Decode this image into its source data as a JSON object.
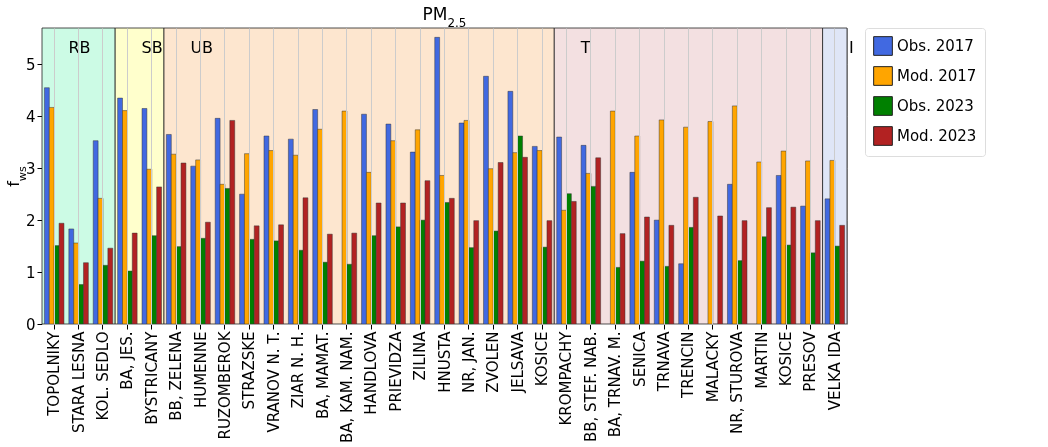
{
  "chart_data": {
    "type": "bar",
    "title": "PM$_{2.5}$",
    "ylabel": "f$_{ws}$",
    "categories": [
      "TOPOLNIKY",
      "STARA LESNA",
      "KOL. SEDLO",
      "BA, JES.",
      "BYSTRICANY",
      "BB, ZELENA",
      "HUMENNE",
      "RUZOMBEROK",
      "STRAZSKE",
      "VRANOV N. T.",
      "ZIAR N. H.",
      "BA, MAMAT.",
      "BA, KAM. NAM.",
      "HANDLOVA",
      "PRIEVIDZA",
      "ZILINA",
      "HNUSTA",
      "NR, JAN.",
      "ZVOLEN",
      "JELSAVA",
      "KOSICE",
      "KROMPACHY",
      "BB, STEF. NAB.",
      "BA, TRNAV. M.",
      "SENICA",
      "TRNAVA",
      "TRENCIN",
      "MALACKY",
      "NR, STUROVA",
      "MARTIN",
      "KOSICE",
      "PRESOV",
      "VELKA IDA"
    ],
    "series": [
      {
        "name": "Obs. 2017",
        "color": "#4169e1",
        "values": [
          4.55,
          1.83,
          3.53,
          4.35,
          4.15,
          3.65,
          3.04,
          3.96,
          2.5,
          3.62,
          3.56,
          4.13,
          null,
          4.04,
          3.85,
          3.31,
          5.52,
          3.87,
          4.77,
          4.48,
          3.42,
          3.6,
          3.44,
          null,
          2.92,
          2.0,
          1.16,
          null,
          2.69,
          null,
          2.86,
          2.27,
          2.41
        ]
      },
      {
        "name": "Mod. 2017",
        "color": "#ffa500",
        "values": [
          4.17,
          1.56,
          2.42,
          4.11,
          2.98,
          3.27,
          3.16,
          2.69,
          3.28,
          3.34,
          3.25,
          3.75,
          4.1,
          2.92,
          3.53,
          3.74,
          2.86,
          3.92,
          2.99,
          3.3,
          3.34,
          2.19,
          2.9,
          4.1,
          3.62,
          3.93,
          3.79,
          3.9,
          4.2,
          3.12,
          3.33,
          3.14,
          3.15
        ]
      },
      {
        "name": "Obs. 2023",
        "color": "#008000",
        "values": [
          1.51,
          0.76,
          1.13,
          1.02,
          1.7,
          1.49,
          1.65,
          2.61,
          1.63,
          1.6,
          1.42,
          1.19,
          1.15,
          1.7,
          1.87,
          2.0,
          2.34,
          1.47,
          1.79,
          3.62,
          1.48,
          2.51,
          2.65,
          1.09,
          1.21,
          1.11,
          1.86,
          null,
          1.22,
          1.68,
          1.52,
          1.37,
          1.5
        ]
      },
      {
        "name": "Mod. 2023",
        "color": "#b22222",
        "values": [
          1.94,
          1.18,
          1.46,
          1.75,
          2.64,
          3.1,
          1.96,
          3.92,
          1.89,
          1.91,
          2.43,
          1.73,
          1.75,
          2.33,
          2.33,
          2.76,
          2.42,
          1.99,
          3.11,
          3.21,
          1.99,
          2.36,
          3.2,
          1.74,
          2.06,
          1.9,
          2.44,
          2.08,
          1.99,
          2.24,
          2.25,
          1.99,
          1.9
        ]
      }
    ],
    "ylim": [
      0,
      5.7
    ],
    "yticks": [
      0,
      1,
      2,
      3,
      4,
      5
    ],
    "grid": true,
    "legend": "top right",
    "bands": [
      {
        "axis": "x",
        "from": "TOPOLNIKY",
        "to": "KOL. SEDLO",
        "label": "RB",
        "color": "#ccfbe5"
      },
      {
        "axis": "x",
        "from": "BA, JES.",
        "to": "BYSTRICANY",
        "label": "SB",
        "color": "#ffffcc"
      },
      {
        "axis": "x",
        "from": "BB, ZELENA",
        "to": "KOSICE",
        "label": "UB",
        "color": "#fde6cf"
      },
      {
        "axis": "x",
        "from": "KROMPACHY",
        "to": "PRESOV",
        "label": "T",
        "color": "#f3e0e1"
      },
      {
        "axis": "x",
        "from": "VELKA IDA",
        "to": "VELKA IDA",
        "label": "I",
        "color": "#dfe6f7"
      }
    ]
  }
}
